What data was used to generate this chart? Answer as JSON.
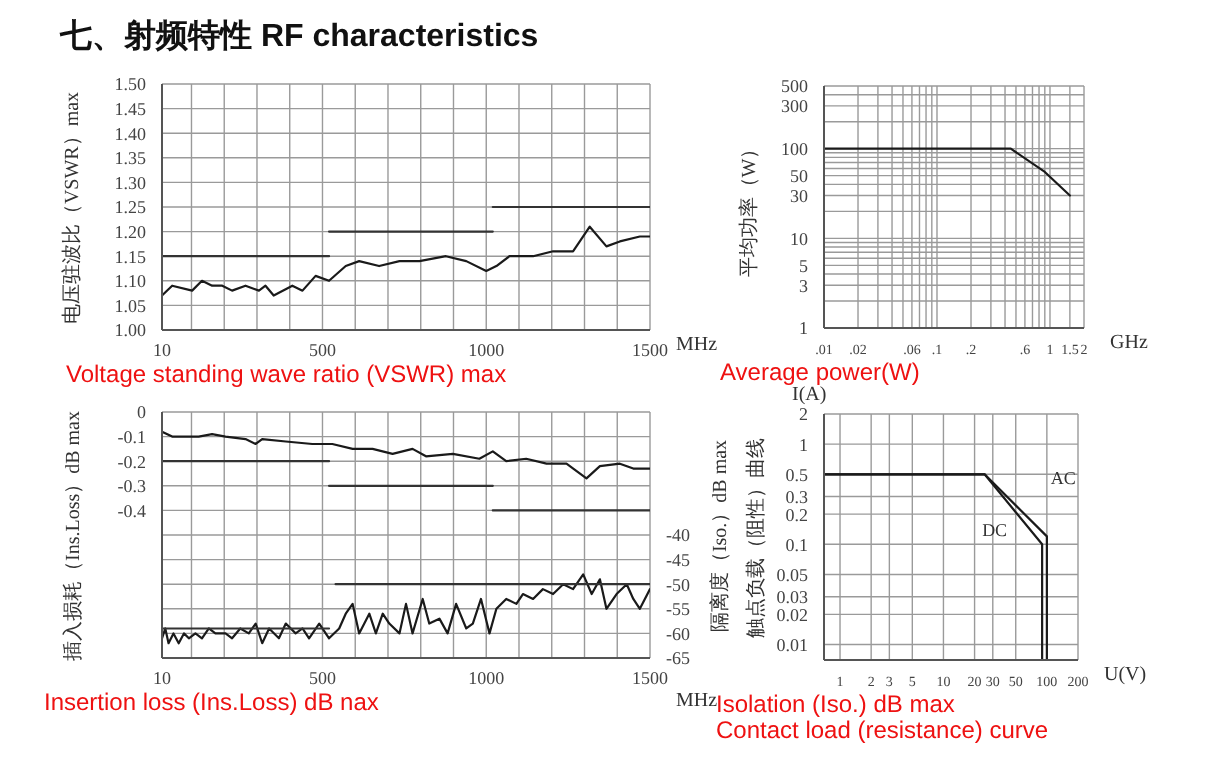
{
  "chart_data": [
    {
      "type": "line",
      "title": "七、射频特性 RF characteristics",
      "ylabel": "电压驻波比（VSWR）max",
      "xlabel": "MHz",
      "annotations": [
        "Voltage standing wave ratio (VSWR) max"
      ],
      "xlim": [
        10,
        1500
      ],
      "xticks": [
        10,
        {
          "value": 100,
          "label": null
        },
        {
          "value": 200,
          "label": null
        },
        {
          "value": 300,
          "label": null
        },
        {
          "value": 400,
          "label": null
        },
        500,
        {
          "value": 600,
          "label": null
        },
        {
          "value": 700,
          "label": null
        },
        {
          "value": 800,
          "label": null
        },
        {
          "value": 900,
          "label": null
        },
        1000,
        {
          "value": 1100,
          "label": null
        },
        {
          "value": 1200,
          "label": null
        },
        {
          "value": 1300,
          "label": null
        },
        {
          "value": 1400,
          "label": null
        },
        1500
      ],
      "ylim": [
        1,
        1.5
      ],
      "yticks": [
        {
          "value": 1,
          "label": "1.00"
        },
        1.05,
        {
          "value": 1.1,
          "label": "1.10"
        },
        1.15,
        {
          "value": 1.2,
          "label": "1.20"
        },
        1.25,
        {
          "value": 1.3,
          "label": "1.30"
        },
        1.35,
        {
          "value": 1.4,
          "label": "1.40"
        },
        1.45,
        {
          "value": 1.5,
          "label": "1.50"
        }
      ],
      "grid": true,
      "series": [
        {
          "color": "#1a1a1a",
          "x": [
            10,
            41,
            102,
            132,
            163,
            194,
            224,
            265,
            306,
            326,
            351,
            408,
            439,
            479,
            520,
            571,
            612,
            673,
            735,
            796,
            877,
            939,
            1000,
            1031,
            1071,
            1143,
            1204,
            1265,
            1316,
            1367,
            1408,
            1469,
            1500
          ],
          "values": [
            1.07,
            1.09,
            1.08,
            1.1,
            1.09,
            1.09,
            1.08,
            1.09,
            1.08,
            1.09,
            1.07,
            1.09,
            1.08,
            1.11,
            1.1,
            1.13,
            1.14,
            1.13,
            1.14,
            1.14,
            1.15,
            1.14,
            1.12,
            1.13,
            1.15,
            1.15,
            1.16,
            1.16,
            1.21,
            1.17,
            1.18,
            1.19,
            1.19
          ]
        },
        {
          "color": "#333333",
          "x": [
            10,
            520
          ],
          "values": [
            1.15,
            1.15
          ]
        },
        {
          "color": "#333333",
          "x": [
            520,
            1020
          ],
          "values": [
            1.2,
            1.2
          ]
        },
        {
          "color": "#333333",
          "x": [
            1020,
            1500
          ],
          "values": [
            1.25,
            1.25
          ]
        }
      ]
    },
    {
      "type": "line",
      "ylabel": "平均功率（W）",
      "xlabel": "GHz",
      "annotations": [
        "Average power(W)"
      ],
      "log": "xy",
      "xlim": [
        0.01,
        2
      ],
      "xticks": [
        {
          "value": 0.01,
          "label": ".01"
        },
        {
          "value": 0.02,
          "label": ".02"
        },
        {
          "value": 0.03,
          "label": null
        },
        {
          "value": 0.04,
          "label": null
        },
        {
          "value": 0.05,
          "label": null
        },
        {
          "value": 0.06,
          "label": ".06"
        },
        {
          "value": 0.07,
          "label": null
        },
        {
          "value": 0.08,
          "label": null
        },
        {
          "value": 0.09,
          "label": null
        },
        {
          "value": 0.1,
          "label": ".1"
        },
        {
          "value": 0.2,
          "label": ".2"
        },
        {
          "value": 0.3,
          "label": null
        },
        {
          "value": 0.4,
          "label": null
        },
        {
          "value": 0.5,
          "label": null
        },
        {
          "value": 0.6,
          "label": ".6"
        },
        {
          "value": 0.7,
          "label": null
        },
        {
          "value": 0.8,
          "label": null
        },
        {
          "value": 0.9,
          "label": null
        },
        1,
        1.5,
        2
      ],
      "ylim": [
        1,
        500
      ],
      "yticks": [
        1,
        {
          "value": 2,
          "label": null
        },
        3,
        {
          "value": 4,
          "label": null
        },
        5,
        {
          "value": 6,
          "label": null
        },
        {
          "value": 7,
          "label": null
        },
        {
          "value": 8,
          "label": null
        },
        {
          "value": 9,
          "label": null
        },
        10,
        {
          "value": 20,
          "label": null
        },
        30,
        {
          "value": 40,
          "label": null
        },
        50,
        {
          "value": 60,
          "label": null
        },
        {
          "value": 70,
          "label": null
        },
        {
          "value": 80,
          "label": null
        },
        {
          "value": 90,
          "label": null
        },
        100,
        {
          "value": 200,
          "label": null
        },
        300,
        {
          "value": 400,
          "label": null
        },
        500
      ],
      "grid": true,
      "series": [
        {
          "color": "#1a1a1a",
          "x": [
            0.01,
            0.45,
            0.9,
            1.5
          ],
          "values": [
            100,
            100,
            55,
            30
          ]
        }
      ]
    },
    {
      "type": "line",
      "ylabel": "插入损耗（Ins.Loss）dB max",
      "y2label": "隔离度（Iso.）dB max",
      "xlabel": "MHz",
      "annotations": [
        "Insertion loss (Ins.Loss) dB nax"
      ],
      "xlim": [
        10,
        1500
      ],
      "xticks": [
        10,
        {
          "value": 100,
          "label": null
        },
        {
          "value": 200,
          "label": null
        },
        {
          "value": 300,
          "label": null
        },
        {
          "value": 400,
          "label": null
        },
        500,
        {
          "value": 600,
          "label": null
        },
        {
          "value": 700,
          "label": null
        },
        {
          "value": 800,
          "label": null
        },
        {
          "value": 900,
          "label": null
        },
        1000,
        {
          "value": 1100,
          "label": null
        },
        {
          "value": 1200,
          "label": null
        },
        {
          "value": 1300,
          "label": null
        },
        {
          "value": 1400,
          "label": null
        },
        1500
      ],
      "ylim": [
        -1,
        0
      ],
      "yticks": [
        0,
        -0.1,
        -0.2,
        -0.3,
        -0.4,
        {
          "value": -0.5,
          "label": null
        },
        {
          "value": -0.6,
          "label": null
        },
        {
          "value": -0.7,
          "label": null
        },
        {
          "value": -0.8,
          "label": null
        },
        {
          "value": -0.9,
          "label": null
        },
        {
          "value": -1,
          "label": null
        }
      ],
      "y2lim": [
        -65,
        -15
      ],
      "y2ticks": [
        -40,
        -45,
        -50,
        -55,
        -60,
        -65
      ],
      "grid": true,
      "series": [
        {
          "color": "#1a1a1a",
          "x": [
            10,
            41,
            122,
            163,
            204,
            265,
            296,
            316,
            388,
            469,
            530,
            592,
            653,
            714,
            775,
            816,
            898,
            979,
            1020,
            1061,
            1122,
            1184,
            1245,
            1306,
            1347,
            1408,
            1449,
            1500
          ],
          "values": [
            -0.08,
            -0.1,
            -0.1,
            -0.09,
            -0.1,
            -0.11,
            -0.13,
            -0.11,
            -0.12,
            -0.13,
            -0.13,
            -0.15,
            -0.15,
            -0.17,
            -0.15,
            -0.18,
            -0.17,
            -0.19,
            -0.16,
            -0.2,
            -0.19,
            -0.21,
            -0.21,
            -0.27,
            -0.22,
            -0.21,
            -0.23,
            -0.23
          ]
        },
        {
          "color": "#333333",
          "x": [
            10,
            520
          ],
          "values": [
            -0.2,
            -0.2
          ]
        },
        {
          "color": "#333333",
          "x": [
            520,
            1020
          ],
          "values": [
            -0.3,
            -0.3
          ]
        },
        {
          "color": "#333333",
          "x": [
            1020,
            1500
          ],
          "values": [
            -0.4,
            -0.4
          ]
        },
        {
          "color": "#1a1a1a",
          "axis": "y2",
          "x": [
            10,
            20,
            30,
            45,
            61,
            77,
            92,
            112,
            132,
            153,
            173,
            204,
            224,
            249,
            275,
            296,
            316,
            337,
            367,
            388,
            418,
            439,
            459,
            490,
            520,
            551,
            571,
            592,
            612,
            643,
            663,
            684,
            704,
            735,
            755,
            775,
            806,
            826,
            857,
            882,
            908,
            939,
            959,
            984,
            1010,
            1031,
            1061,
            1092,
            1112,
            1143,
            1173,
            1204,
            1235,
            1265,
            1296,
            1322,
            1347,
            1367,
            1398,
            1429,
            1449,
            1469,
            1500
          ],
          "values": [
            -61,
            -59,
            -62,
            -60,
            -62,
            -60,
            -61,
            -60,
            -61,
            -59,
            -60,
            -60,
            -61,
            -59,
            -60,
            -58,
            -62,
            -59,
            -61,
            -58,
            -60,
            -59,
            -61,
            -58,
            -61,
            -59,
            -56,
            -54,
            -60,
            -56,
            -60,
            -56,
            -58,
            -60,
            -54,
            -60,
            -53,
            -58,
            -57,
            -60,
            -54,
            -59,
            -58,
            -53,
            -60,
            -55,
            -53,
            -54,
            -52,
            -53,
            -51,
            -52,
            -50,
            -51,
            -48,
            -52,
            -49,
            -55,
            -52,
            -50,
            -53,
            -55,
            -51
          ]
        },
        {
          "color": "#333333",
          "axis": "y2",
          "x": [
            10,
            520
          ],
          "values": [
            -59,
            -59
          ]
        },
        {
          "color": "#333333",
          "axis": "y2",
          "x": [
            540,
            1500
          ],
          "values": [
            -50,
            -50
          ]
        }
      ]
    },
    {
      "type": "line",
      "subtitle": "I(A)",
      "ylabel": "触点负载（阻性）曲线",
      "xlabel": "U(V)",
      "annotations": [
        "Isolation (Iso.) dB max",
        "Contact load (resistance) curve"
      ],
      "log": "xy",
      "xlim": [
        0.7,
        200
      ],
      "xticks": [
        1,
        2,
        3,
        5,
        10,
        20,
        30,
        50,
        100,
        200
      ],
      "ylim": [
        0.007,
        2
      ],
      "yticks": [
        0.01,
        0.02,
        0.03,
        0.05,
        0.1,
        0.2,
        0.3,
        0.5,
        1,
        2
      ],
      "grid": true,
      "series": [
        {
          "name": "AC",
          "color": "#1a1a1a",
          "x": [
            0.7,
            25,
            100,
            100
          ],
          "values": [
            0.5,
            0.5,
            0.12,
            0.007
          ]
        },
        {
          "name": "DC",
          "color": "#1a1a1a",
          "x": [
            0.7,
            25,
            90,
            90
          ],
          "values": [
            0.5,
            0.5,
            0.1,
            0.007
          ]
        }
      ]
    }
  ]
}
